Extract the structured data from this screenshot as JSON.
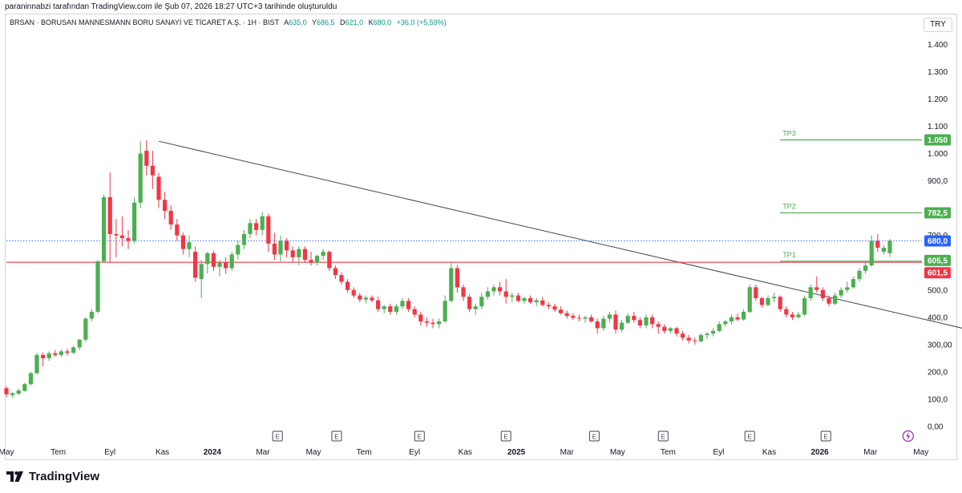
{
  "header": {
    "attribution": "paraninnabzi tarafından TradingView.com ile Şub 07, 2026 18:27 UTC+3 tarihinde oluşturuldu"
  },
  "legend": {
    "symbol": "BRSAN · BORUSAN MANNESMANN BORU SANAYİ VE TİCARET A.Ş. · 1H · BIST",
    "open_label": "A",
    "open": "635,0",
    "high_label": "Y",
    "high": "686,5",
    "low_label": "D",
    "low": "621,0",
    "close_label": "K",
    "close": "680,0",
    "change": "+36,0 (+5,59%)"
  },
  "currency_button": "TRY",
  "brand": {
    "name": "TradingView"
  },
  "colors": {
    "up": "#4caf50",
    "down": "#f23645",
    "tp": "#4caf50",
    "resistance": "#f23645",
    "current": "#2962ff",
    "trendline": "#434651",
    "axis_text": "#131722"
  },
  "chart_data": {
    "type": "candlestick",
    "title": "",
    "ylim": [
      0,
      1450
    ],
    "y_ticks": [
      {
        "v": 0,
        "label": "0,00"
      },
      {
        "v": 100,
        "label": "100,0"
      },
      {
        "v": 200,
        "label": "200,0"
      },
      {
        "v": 300,
        "label": "300,00"
      },
      {
        "v": 400,
        "label": "400,0"
      },
      {
        "v": 500,
        "label": "500,0"
      },
      {
        "v": 700,
        "label": "700,0"
      },
      {
        "v": 900,
        "label": "900,0"
      },
      {
        "v": 1000,
        "label": "1.000"
      },
      {
        "v": 1100,
        "label": "1.100"
      },
      {
        "v": 1200,
        "label": "1.200"
      },
      {
        "v": 1300,
        "label": "1.300"
      },
      {
        "v": 1400,
        "label": "1.400"
      }
    ],
    "x_ticks": [
      {
        "x": 0,
        "label": "May",
        "bold": false
      },
      {
        "x": 8.5,
        "label": "Tem",
        "bold": false
      },
      {
        "x": 17,
        "label": "Eyl",
        "bold": false
      },
      {
        "x": 25.6,
        "label": "Kas",
        "bold": false
      },
      {
        "x": 33.8,
        "label": "2024",
        "bold": true
      },
      {
        "x": 42.1,
        "label": "Mar",
        "bold": false
      },
      {
        "x": 50.4,
        "label": "May",
        "bold": false
      },
      {
        "x": 58.7,
        "label": "Tem",
        "bold": false
      },
      {
        "x": 67,
        "label": "Eyl",
        "bold": false
      },
      {
        "x": 75.3,
        "label": "Kas",
        "bold": false
      },
      {
        "x": 83.7,
        "label": "2025",
        "bold": true
      },
      {
        "x": 92,
        "label": "Mar",
        "bold": false
      },
      {
        "x": 100.3,
        "label": "May",
        "bold": false
      },
      {
        "x": 108.6,
        "label": "Tem",
        "bold": false
      },
      {
        "x": 116.9,
        "label": "Eyl",
        "bold": false
      },
      {
        "x": 125.2,
        "label": "Kas",
        "bold": false
      },
      {
        "x": 133.5,
        "label": "2026",
        "bold": true
      },
      {
        "x": 141.8,
        "label": "Mar",
        "bold": false
      },
      {
        "x": 150.1,
        "label": "May",
        "bold": false
      }
    ],
    "candles": [
      {
        "o": 140,
        "h": 148,
        "l": 108,
        "c": 118
      },
      {
        "o": 115,
        "h": 125,
        "l": 105,
        "c": 122
      },
      {
        "o": 120,
        "h": 138,
        "l": 115,
        "c": 132
      },
      {
        "o": 130,
        "h": 160,
        "l": 128,
        "c": 155
      },
      {
        "o": 155,
        "h": 200,
        "l": 150,
        "c": 195
      },
      {
        "o": 195,
        "h": 270,
        "l": 190,
        "c": 262
      },
      {
        "o": 262,
        "h": 270,
        "l": 220,
        "c": 250
      },
      {
        "o": 250,
        "h": 275,
        "l": 240,
        "c": 268
      },
      {
        "o": 268,
        "h": 280,
        "l": 255,
        "c": 262
      },
      {
        "o": 262,
        "h": 282,
        "l": 255,
        "c": 275
      },
      {
        "o": 275,
        "h": 285,
        "l": 260,
        "c": 270
      },
      {
        "o": 270,
        "h": 295,
        "l": 265,
        "c": 290
      },
      {
        "o": 290,
        "h": 320,
        "l": 280,
        "c": 318
      },
      {
        "o": 318,
        "h": 400,
        "l": 310,
        "c": 395
      },
      {
        "o": 395,
        "h": 430,
        "l": 385,
        "c": 420
      },
      {
        "o": 420,
        "h": 610,
        "l": 415,
        "c": 605
      },
      {
        "o": 605,
        "h": 850,
        "l": 600,
        "c": 840
      },
      {
        "o": 840,
        "h": 930,
        "l": 600,
        "c": 705
      },
      {
        "o": 705,
        "h": 760,
        "l": 620,
        "c": 700
      },
      {
        "o": 700,
        "h": 770,
        "l": 660,
        "c": 690
      },
      {
        "o": 690,
        "h": 720,
        "l": 650,
        "c": 680
      },
      {
        "o": 680,
        "h": 840,
        "l": 670,
        "c": 820
      },
      {
        "o": 820,
        "h": 1045,
        "l": 800,
        "c": 1000
      },
      {
        "o": 1010,
        "h": 1048,
        "l": 920,
        "c": 955
      },
      {
        "o": 955,
        "h": 1010,
        "l": 870,
        "c": 920
      },
      {
        "o": 915,
        "h": 930,
        "l": 800,
        "c": 830
      },
      {
        "o": 830,
        "h": 860,
        "l": 760,
        "c": 790
      },
      {
        "o": 790,
        "h": 810,
        "l": 720,
        "c": 740
      },
      {
        "o": 740,
        "h": 760,
        "l": 680,
        "c": 700
      },
      {
        "o": 700,
        "h": 710,
        "l": 630,
        "c": 650
      },
      {
        "o": 650,
        "h": 700,
        "l": 620,
        "c": 675
      },
      {
        "o": 640,
        "h": 660,
        "l": 530,
        "c": 545
      },
      {
        "o": 540,
        "h": 610,
        "l": 470,
        "c": 595
      },
      {
        "o": 595,
        "h": 640,
        "l": 560,
        "c": 635
      },
      {
        "o": 635,
        "h": 645,
        "l": 570,
        "c": 585
      },
      {
        "o": 585,
        "h": 610,
        "l": 550,
        "c": 600
      },
      {
        "o": 600,
        "h": 620,
        "l": 560,
        "c": 580
      },
      {
        "o": 580,
        "h": 640,
        "l": 570,
        "c": 630
      },
      {
        "o": 630,
        "h": 680,
        "l": 610,
        "c": 665
      },
      {
        "o": 665,
        "h": 720,
        "l": 650,
        "c": 705
      },
      {
        "o": 705,
        "h": 760,
        "l": 690,
        "c": 745
      },
      {
        "o": 745,
        "h": 760,
        "l": 700,
        "c": 720
      },
      {
        "o": 720,
        "h": 785,
        "l": 700,
        "c": 770
      },
      {
        "o": 770,
        "h": 780,
        "l": 640,
        "c": 670
      },
      {
        "o": 670,
        "h": 710,
        "l": 610,
        "c": 630
      },
      {
        "o": 630,
        "h": 700,
        "l": 605,
        "c": 680
      },
      {
        "o": 680,
        "h": 690,
        "l": 620,
        "c": 645
      },
      {
        "o": 645,
        "h": 660,
        "l": 600,
        "c": 620
      },
      {
        "o": 620,
        "h": 660,
        "l": 590,
        "c": 650
      },
      {
        "o": 650,
        "h": 660,
        "l": 600,
        "c": 610
      },
      {
        "o": 610,
        "h": 640,
        "l": 590,
        "c": 600
      },
      {
        "o": 600,
        "h": 630,
        "l": 590,
        "c": 625
      },
      {
        "o": 625,
        "h": 650,
        "l": 610,
        "c": 640
      },
      {
        "o": 640,
        "h": 645,
        "l": 570,
        "c": 580
      },
      {
        "o": 580,
        "h": 590,
        "l": 540,
        "c": 555
      },
      {
        "o": 555,
        "h": 565,
        "l": 520,
        "c": 530
      },
      {
        "o": 530,
        "h": 540,
        "l": 490,
        "c": 500
      },
      {
        "o": 500,
        "h": 510,
        "l": 470,
        "c": 480
      },
      {
        "o": 480,
        "h": 490,
        "l": 455,
        "c": 465
      },
      {
        "o": 465,
        "h": 480,
        "l": 450,
        "c": 472
      },
      {
        "o": 472,
        "h": 480,
        "l": 455,
        "c": 462
      },
      {
        "o": 462,
        "h": 475,
        "l": 420,
        "c": 430
      },
      {
        "o": 430,
        "h": 445,
        "l": 415,
        "c": 440
      },
      {
        "o": 440,
        "h": 450,
        "l": 410,
        "c": 420
      },
      {
        "o": 420,
        "h": 450,
        "l": 410,
        "c": 440
      },
      {
        "o": 440,
        "h": 470,
        "l": 430,
        "c": 460
      },
      {
        "o": 460,
        "h": 470,
        "l": 420,
        "c": 430
      },
      {
        "o": 430,
        "h": 440,
        "l": 400,
        "c": 410
      },
      {
        "o": 410,
        "h": 420,
        "l": 370,
        "c": 385
      },
      {
        "o": 385,
        "h": 400,
        "l": 365,
        "c": 380
      },
      {
        "o": 380,
        "h": 395,
        "l": 360,
        "c": 375
      },
      {
        "o": 375,
        "h": 395,
        "l": 360,
        "c": 385
      },
      {
        "o": 385,
        "h": 480,
        "l": 380,
        "c": 460
      },
      {
        "o": 460,
        "h": 600,
        "l": 455,
        "c": 580
      },
      {
        "o": 580,
        "h": 590,
        "l": 490,
        "c": 510
      },
      {
        "o": 510,
        "h": 520,
        "l": 460,
        "c": 475
      },
      {
        "o": 475,
        "h": 485,
        "l": 420,
        "c": 430
      },
      {
        "o": 430,
        "h": 450,
        "l": 410,
        "c": 440
      },
      {
        "o": 440,
        "h": 490,
        "l": 430,
        "c": 475
      },
      {
        "o": 475,
        "h": 510,
        "l": 465,
        "c": 495
      },
      {
        "o": 495,
        "h": 520,
        "l": 480,
        "c": 510
      },
      {
        "o": 510,
        "h": 530,
        "l": 480,
        "c": 495
      },
      {
        "o": 495,
        "h": 540,
        "l": 450,
        "c": 475
      },
      {
        "o": 475,
        "h": 490,
        "l": 455,
        "c": 480
      },
      {
        "o": 480,
        "h": 490,
        "l": 455,
        "c": 460
      },
      {
        "o": 460,
        "h": 475,
        "l": 450,
        "c": 470
      },
      {
        "o": 470,
        "h": 480,
        "l": 450,
        "c": 455
      },
      {
        "o": 455,
        "h": 470,
        "l": 440,
        "c": 462
      },
      {
        "o": 462,
        "h": 475,
        "l": 440,
        "c": 445
      },
      {
        "o": 445,
        "h": 455,
        "l": 430,
        "c": 440
      },
      {
        "o": 440,
        "h": 450,
        "l": 420,
        "c": 428
      },
      {
        "o": 428,
        "h": 440,
        "l": 410,
        "c": 415
      },
      {
        "o": 415,
        "h": 425,
        "l": 395,
        "c": 405
      },
      {
        "o": 405,
        "h": 415,
        "l": 390,
        "c": 398
      },
      {
        "o": 398,
        "h": 410,
        "l": 385,
        "c": 395
      },
      {
        "o": 395,
        "h": 405,
        "l": 380,
        "c": 400
      },
      {
        "o": 400,
        "h": 410,
        "l": 380,
        "c": 385
      },
      {
        "o": 385,
        "h": 395,
        "l": 340,
        "c": 360
      },
      {
        "o": 360,
        "h": 405,
        "l": 350,
        "c": 395
      },
      {
        "o": 395,
        "h": 420,
        "l": 380,
        "c": 410
      },
      {
        "o": 410,
        "h": 425,
        "l": 340,
        "c": 355
      },
      {
        "o": 355,
        "h": 390,
        "l": 345,
        "c": 380
      },
      {
        "o": 380,
        "h": 415,
        "l": 375,
        "c": 405
      },
      {
        "o": 405,
        "h": 420,
        "l": 380,
        "c": 390
      },
      {
        "o": 390,
        "h": 400,
        "l": 360,
        "c": 370
      },
      {
        "o": 370,
        "h": 410,
        "l": 360,
        "c": 400
      },
      {
        "o": 400,
        "h": 410,
        "l": 360,
        "c": 375
      },
      {
        "o": 375,
        "h": 385,
        "l": 340,
        "c": 365
      },
      {
        "o": 365,
        "h": 375,
        "l": 340,
        "c": 350
      },
      {
        "o": 350,
        "h": 365,
        "l": 340,
        "c": 360
      },
      {
        "o": 360,
        "h": 365,
        "l": 330,
        "c": 340
      },
      {
        "o": 340,
        "h": 350,
        "l": 315,
        "c": 325
      },
      {
        "o": 325,
        "h": 335,
        "l": 305,
        "c": 315
      },
      {
        "o": 315,
        "h": 325,
        "l": 300,
        "c": 312
      },
      {
        "o": 312,
        "h": 340,
        "l": 308,
        "c": 335
      },
      {
        "o": 335,
        "h": 345,
        "l": 320,
        "c": 340
      },
      {
        "o": 340,
        "h": 360,
        "l": 330,
        "c": 350
      },
      {
        "o": 350,
        "h": 385,
        "l": 345,
        "c": 375
      },
      {
        "o": 375,
        "h": 390,
        "l": 365,
        "c": 385
      },
      {
        "o": 385,
        "h": 410,
        "l": 375,
        "c": 400
      },
      {
        "o": 400,
        "h": 415,
        "l": 385,
        "c": 392
      },
      {
        "o": 392,
        "h": 430,
        "l": 388,
        "c": 420
      },
      {
        "o": 420,
        "h": 520,
        "l": 415,
        "c": 510
      },
      {
        "o": 510,
        "h": 520,
        "l": 460,
        "c": 470
      },
      {
        "o": 470,
        "h": 475,
        "l": 435,
        "c": 445
      },
      {
        "o": 445,
        "h": 480,
        "l": 440,
        "c": 470
      },
      {
        "o": 470,
        "h": 490,
        "l": 455,
        "c": 475
      },
      {
        "o": 475,
        "h": 480,
        "l": 420,
        "c": 430
      },
      {
        "o": 430,
        "h": 440,
        "l": 400,
        "c": 410
      },
      {
        "o": 410,
        "h": 420,
        "l": 390,
        "c": 400
      },
      {
        "o": 400,
        "h": 420,
        "l": 395,
        "c": 410
      },
      {
        "o": 410,
        "h": 480,
        "l": 405,
        "c": 470
      },
      {
        "o": 470,
        "h": 520,
        "l": 460,
        "c": 510
      },
      {
        "o": 510,
        "h": 550,
        "l": 490,
        "c": 500
      },
      {
        "o": 500,
        "h": 510,
        "l": 460,
        "c": 470
      },
      {
        "o": 470,
        "h": 480,
        "l": 440,
        "c": 450
      },
      {
        "o": 450,
        "h": 490,
        "l": 445,
        "c": 480
      },
      {
        "o": 480,
        "h": 510,
        "l": 470,
        "c": 500
      },
      {
        "o": 500,
        "h": 530,
        "l": 490,
        "c": 510
      },
      {
        "o": 510,
        "h": 550,
        "l": 505,
        "c": 540
      },
      {
        "o": 540,
        "h": 580,
        "l": 530,
        "c": 570
      },
      {
        "o": 570,
        "h": 600,
        "l": 560,
        "c": 590
      },
      {
        "o": 590,
        "h": 700,
        "l": 585,
        "c": 680
      },
      {
        "o": 680,
        "h": 705,
        "l": 640,
        "c": 655
      },
      {
        "o": 640,
        "h": 665,
        "l": 630,
        "c": 655
      },
      {
        "o": 635,
        "h": 686.5,
        "l": 621,
        "c": 680
      }
    ],
    "trendline": [
      {
        "x": 25,
        "y": 1045
      },
      {
        "x": 170,
        "y": 292
      }
    ],
    "levels": [
      {
        "value": 1050,
        "label": "1.050",
        "tag": "TP3",
        "x_start": 127,
        "color": "#4caf50"
      },
      {
        "value": 782.5,
        "label": "782,5",
        "tag": "TP2",
        "x_start": 127,
        "color": "#4caf50"
      },
      {
        "value": 605.5,
        "label": "605,5",
        "tag": "TP1",
        "x_start": 127,
        "color": "#4caf50"
      },
      {
        "value": 601.5,
        "label": "601,5",
        "tag": "",
        "x_start": 0,
        "color": "#f23645"
      },
      {
        "value": 680,
        "label": "680,0",
        "tag": "",
        "x_start": 0,
        "color": "#2962ff"
      }
    ],
    "events": [
      {
        "x": 44.5,
        "kind": "E"
      },
      {
        "x": 54.2,
        "kind": "E"
      },
      {
        "x": 67.8,
        "kind": "E"
      },
      {
        "x": 82,
        "kind": "E"
      },
      {
        "x": 96.5,
        "kind": "E"
      },
      {
        "x": 107.8,
        "kind": "E"
      },
      {
        "x": 122,
        "kind": "E"
      },
      {
        "x": 134.5,
        "kind": "E"
      },
      {
        "x": 148,
        "kind": "bolt"
      }
    ]
  }
}
